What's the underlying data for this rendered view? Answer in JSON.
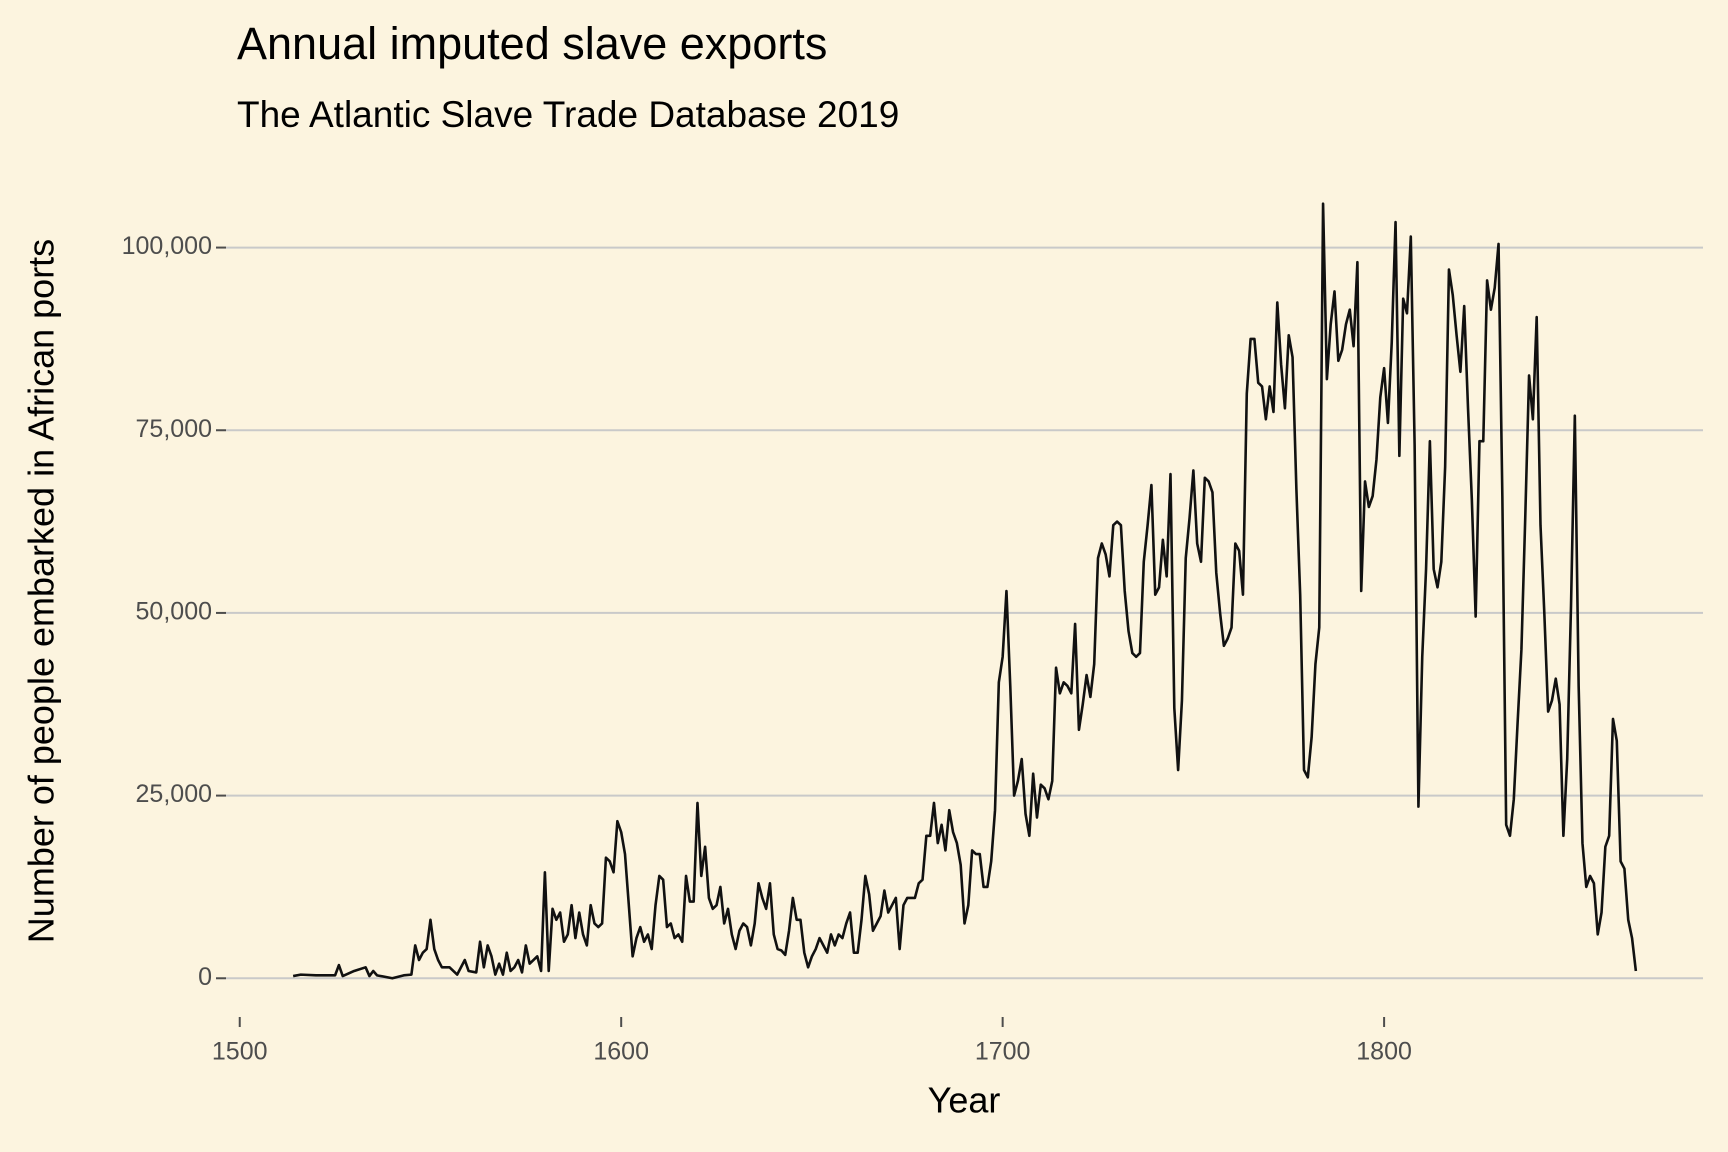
{
  "chart_data": {
    "type": "line",
    "title": "Annual imputed slave exports",
    "subtitle": "The Atlantic Slave Trade Database 2019",
    "x_label": "Year",
    "y_label": "Number of people embarked in African ports",
    "xlim": [
      1496.4,
      1883.6
    ],
    "ylim": [
      -5300,
      111300
    ],
    "xticks": [
      1500,
      1600,
      1700,
      1800
    ],
    "yticks": [
      0,
      {
        "value": 25000,
        "label": "25,000"
      },
      {
        "value": 50000,
        "label": "50,000"
      },
      {
        "value": 75000,
        "label": "75,000"
      },
      {
        "value": 100000,
        "label": "100,000"
      }
    ],
    "grid": true,
    "color": "#111111",
    "x": [
      1514,
      1516,
      1520,
      1525,
      1526,
      1527,
      1530,
      1533,
      1534,
      1535,
      1536,
      1540,
      1543,
      1545,
      1546,
      1547,
      1548,
      1549,
      1550,
      1551,
      1552,
      1553,
      1555,
      1557,
      1559,
      1560,
      1562,
      1563,
      1564,
      1565,
      1566,
      1567,
      1568,
      1569,
      1570,
      1571,
      1572,
      1573,
      1574,
      1575,
      1576,
      1577,
      1578,
      1579,
      1580,
      1581,
      1582,
      1583,
      1584,
      1585,
      1586,
      1587,
      1588,
      1589,
      1590,
      1591,
      1592,
      1593,
      1594,
      1595,
      1596,
      1597,
      1598,
      1599,
      1600,
      1601,
      1602,
      1603,
      1604,
      1605,
      1606,
      1607,
      1608,
      1609,
      1610,
      1611,
      1612,
      1613,
      1614,
      1615,
      1616,
      1617,
      1618,
      1619,
      1620,
      1621,
      1622,
      1623,
      1624,
      1625,
      1626,
      1627,
      1628,
      1629,
      1630,
      1631,
      1632,
      1633,
      1634,
      1635,
      1636,
      1637,
      1638,
      1639,
      1640,
      1641,
      1642,
      1643,
      1644,
      1645,
      1646,
      1647,
      1648,
      1649,
      1650,
      1651,
      1652,
      1653,
      1654,
      1655,
      1656,
      1657,
      1658,
      1659,
      1660,
      1661,
      1662,
      1663,
      1664,
      1665,
      1666,
      1667,
      1668,
      1669,
      1670,
      1671,
      1672,
      1673,
      1674,
      1675,
      1676,
      1677,
      1678,
      1679,
      1680,
      1681,
      1682,
      1683,
      1684,
      1685,
      1686,
      1687,
      1688,
      1689,
      1690,
      1691,
      1692,
      1693,
      1694,
      1695,
      1696,
      1697,
      1698,
      1699,
      1700,
      1701,
      1702,
      1703,
      1704,
      1705,
      1706,
      1707,
      1708,
      1709,
      1710,
      1711,
      1712,
      1713,
      1714,
      1715,
      1716,
      1717,
      1718,
      1719,
      1720,
      1721,
      1722,
      1723,
      1724,
      1725,
      1726,
      1727,
      1728,
      1729,
      1730,
      1731,
      1732,
      1733,
      1734,
      1735,
      1736,
      1737,
      1738,
      1739,
      1740,
      1741,
      1742,
      1743,
      1744,
      1745,
      1746,
      1747,
      1748,
      1749,
      1750,
      1751,
      1752,
      1753,
      1754,
      1755,
      1756,
      1757,
      1758,
      1759,
      1760,
      1761,
      1762,
      1763,
      1764,
      1765,
      1766,
      1767,
      1768,
      1769,
      1770,
      1771,
      1772,
      1773,
      1774,
      1775,
      1776,
      1777,
      1778,
      1779,
      1780,
      1781,
      1782,
      1783,
      1784,
      1785,
      1786,
      1787,
      1788,
      1789,
      1790,
      1791,
      1792,
      1793,
      1794,
      1795,
      1796,
      1797,
      1798,
      1799,
      1800,
      1801,
      1802,
      1803,
      1804,
      1805,
      1806,
      1807,
      1808,
      1809,
      1810,
      1811,
      1812,
      1813,
      1814,
      1815,
      1816,
      1817,
      1818,
      1819,
      1820,
      1821,
      1822,
      1823,
      1824,
      1825,
      1826,
      1827,
      1828,
      1829,
      1830,
      1831,
      1832,
      1833,
      1834,
      1835,
      1836,
      1837,
      1838,
      1839,
      1840,
      1841,
      1842,
      1843,
      1844,
      1845,
      1846,
      1847,
      1848,
      1849,
      1850,
      1851,
      1852,
      1853,
      1854,
      1855,
      1856,
      1857,
      1858,
      1859,
      1860,
      1861,
      1862,
      1863,
      1864,
      1865,
      1866
    ],
    "values": [
      300,
      500,
      400,
      400,
      1800,
      300,
      1000,
      1500,
      300,
      1000,
      400,
      0,
      400,
      500,
      4500,
      2500,
      3500,
      4000,
      8000,
      4000,
      2500,
      1500,
      1500,
      500,
      2500,
      1000,
      800,
      5000,
      1500,
      4500,
      3000,
      500,
      2000,
      500,
      3500,
      1000,
      1500,
      2500,
      800,
      4500,
      2000,
      2500,
      3000,
      1000,
      14500,
      1000,
      9500,
      8000,
      9000,
      5000,
      6000,
      10000,
      5500,
      9000,
      6000,
      4500,
      10000,
      7500,
      7000,
      7500,
      16500,
      16000,
      14500,
      21500,
      20000,
      17000,
      10000,
      3000,
      5500,
      7000,
      5000,
      6000,
      4000,
      10000,
      14000,
      13500,
      7000,
      7500,
      5500,
      6000,
      5000,
      14000,
      10500,
      10500,
      24000,
      14000,
      18000,
      11000,
      9500,
      10000,
      12500,
      7500,
      9500,
      6000,
      4000,
      6500,
      7500,
      7000,
      4500,
      7500,
      13000,
      11000,
      9500,
      13000,
      6000,
      4000,
      3800,
      3200,
      6500,
      11000,
      8000,
      8000,
      3500,
      1500,
      3000,
      4000,
      5500,
      4500,
      3500,
      6000,
      4500,
      6000,
      5500,
      7500,
      9000,
      3500,
      3500,
      8000,
      14000,
      11500,
      6500,
      7500,
      8500,
      12000,
      9000,
      10000,
      11000,
      4000,
      10000,
      11000,
      11000,
      11000,
      13000,
      13500,
      19500,
      19500,
      24000,
      18500,
      21000,
      17500,
      23000,
      20000,
      18500,
      15500,
      7500,
      10000,
      17500,
      17000,
      17000,
      12500,
      12500,
      16000,
      23000,
      40500,
      44000,
      53000,
      40000,
      25000,
      27000,
      30000,
      22500,
      19500,
      28000,
      22000,
      26500,
      26000,
      24500,
      27000,
      42500,
      39000,
      40500,
      40000,
      39000,
      48500,
      34000,
      37500,
      41500,
      38500,
      43000,
      57500,
      59500,
      58000,
      55000,
      62000,
      62500,
      62000,
      53000,
      47500,
      44500,
      44000,
      44500,
      57000,
      62000,
      67500,
      52500,
      53500,
      60000,
      55000,
      69000,
      37000,
      28500,
      38000,
      57500,
      63000,
      69500,
      59500,
      57000,
      68500,
      68000,
      66500,
      55500,
      50000,
      45500,
      46500,
      48000,
      59500,
      58500,
      52500,
      80000,
      87500,
      87500,
      81500,
      81000,
      76500,
      81000,
      77500,
      92500,
      84000,
      78000,
      88000,
      85000,
      67000,
      52500,
      28500,
      27500,
      33000,
      43000,
      48000,
      106000,
      82000,
      89500,
      94000,
      84500,
      86000,
      89500,
      91500,
      86500,
      98000,
      53000,
      68000,
      64500,
      66000,
      71000,
      79500,
      83500,
      76000,
      87000,
      103500,
      71500,
      93000,
      91000,
      101500,
      73000,
      23500,
      44000,
      56000,
      73500,
      56000,
      53500,
      57000,
      70000,
      97000,
      93500,
      88000,
      83000,
      92000,
      78000,
      65500,
      49500,
      73500,
      73500,
      95500,
      91500,
      94500,
      100500,
      66000,
      21000,
      19500,
      24500,
      35000,
      45000,
      63000,
      82500,
      76500,
      90500,
      62000,
      50000,
      36500,
      38000,
      41000,
      37500,
      19500,
      30000,
      51000,
      77000,
      40000,
      18500,
      12500,
      14000,
      13000,
      6000,
      9000,
      18000,
      19500,
      35500,
      32500,
      16000,
      15000,
      8000,
      5500,
      1000
    ]
  }
}
